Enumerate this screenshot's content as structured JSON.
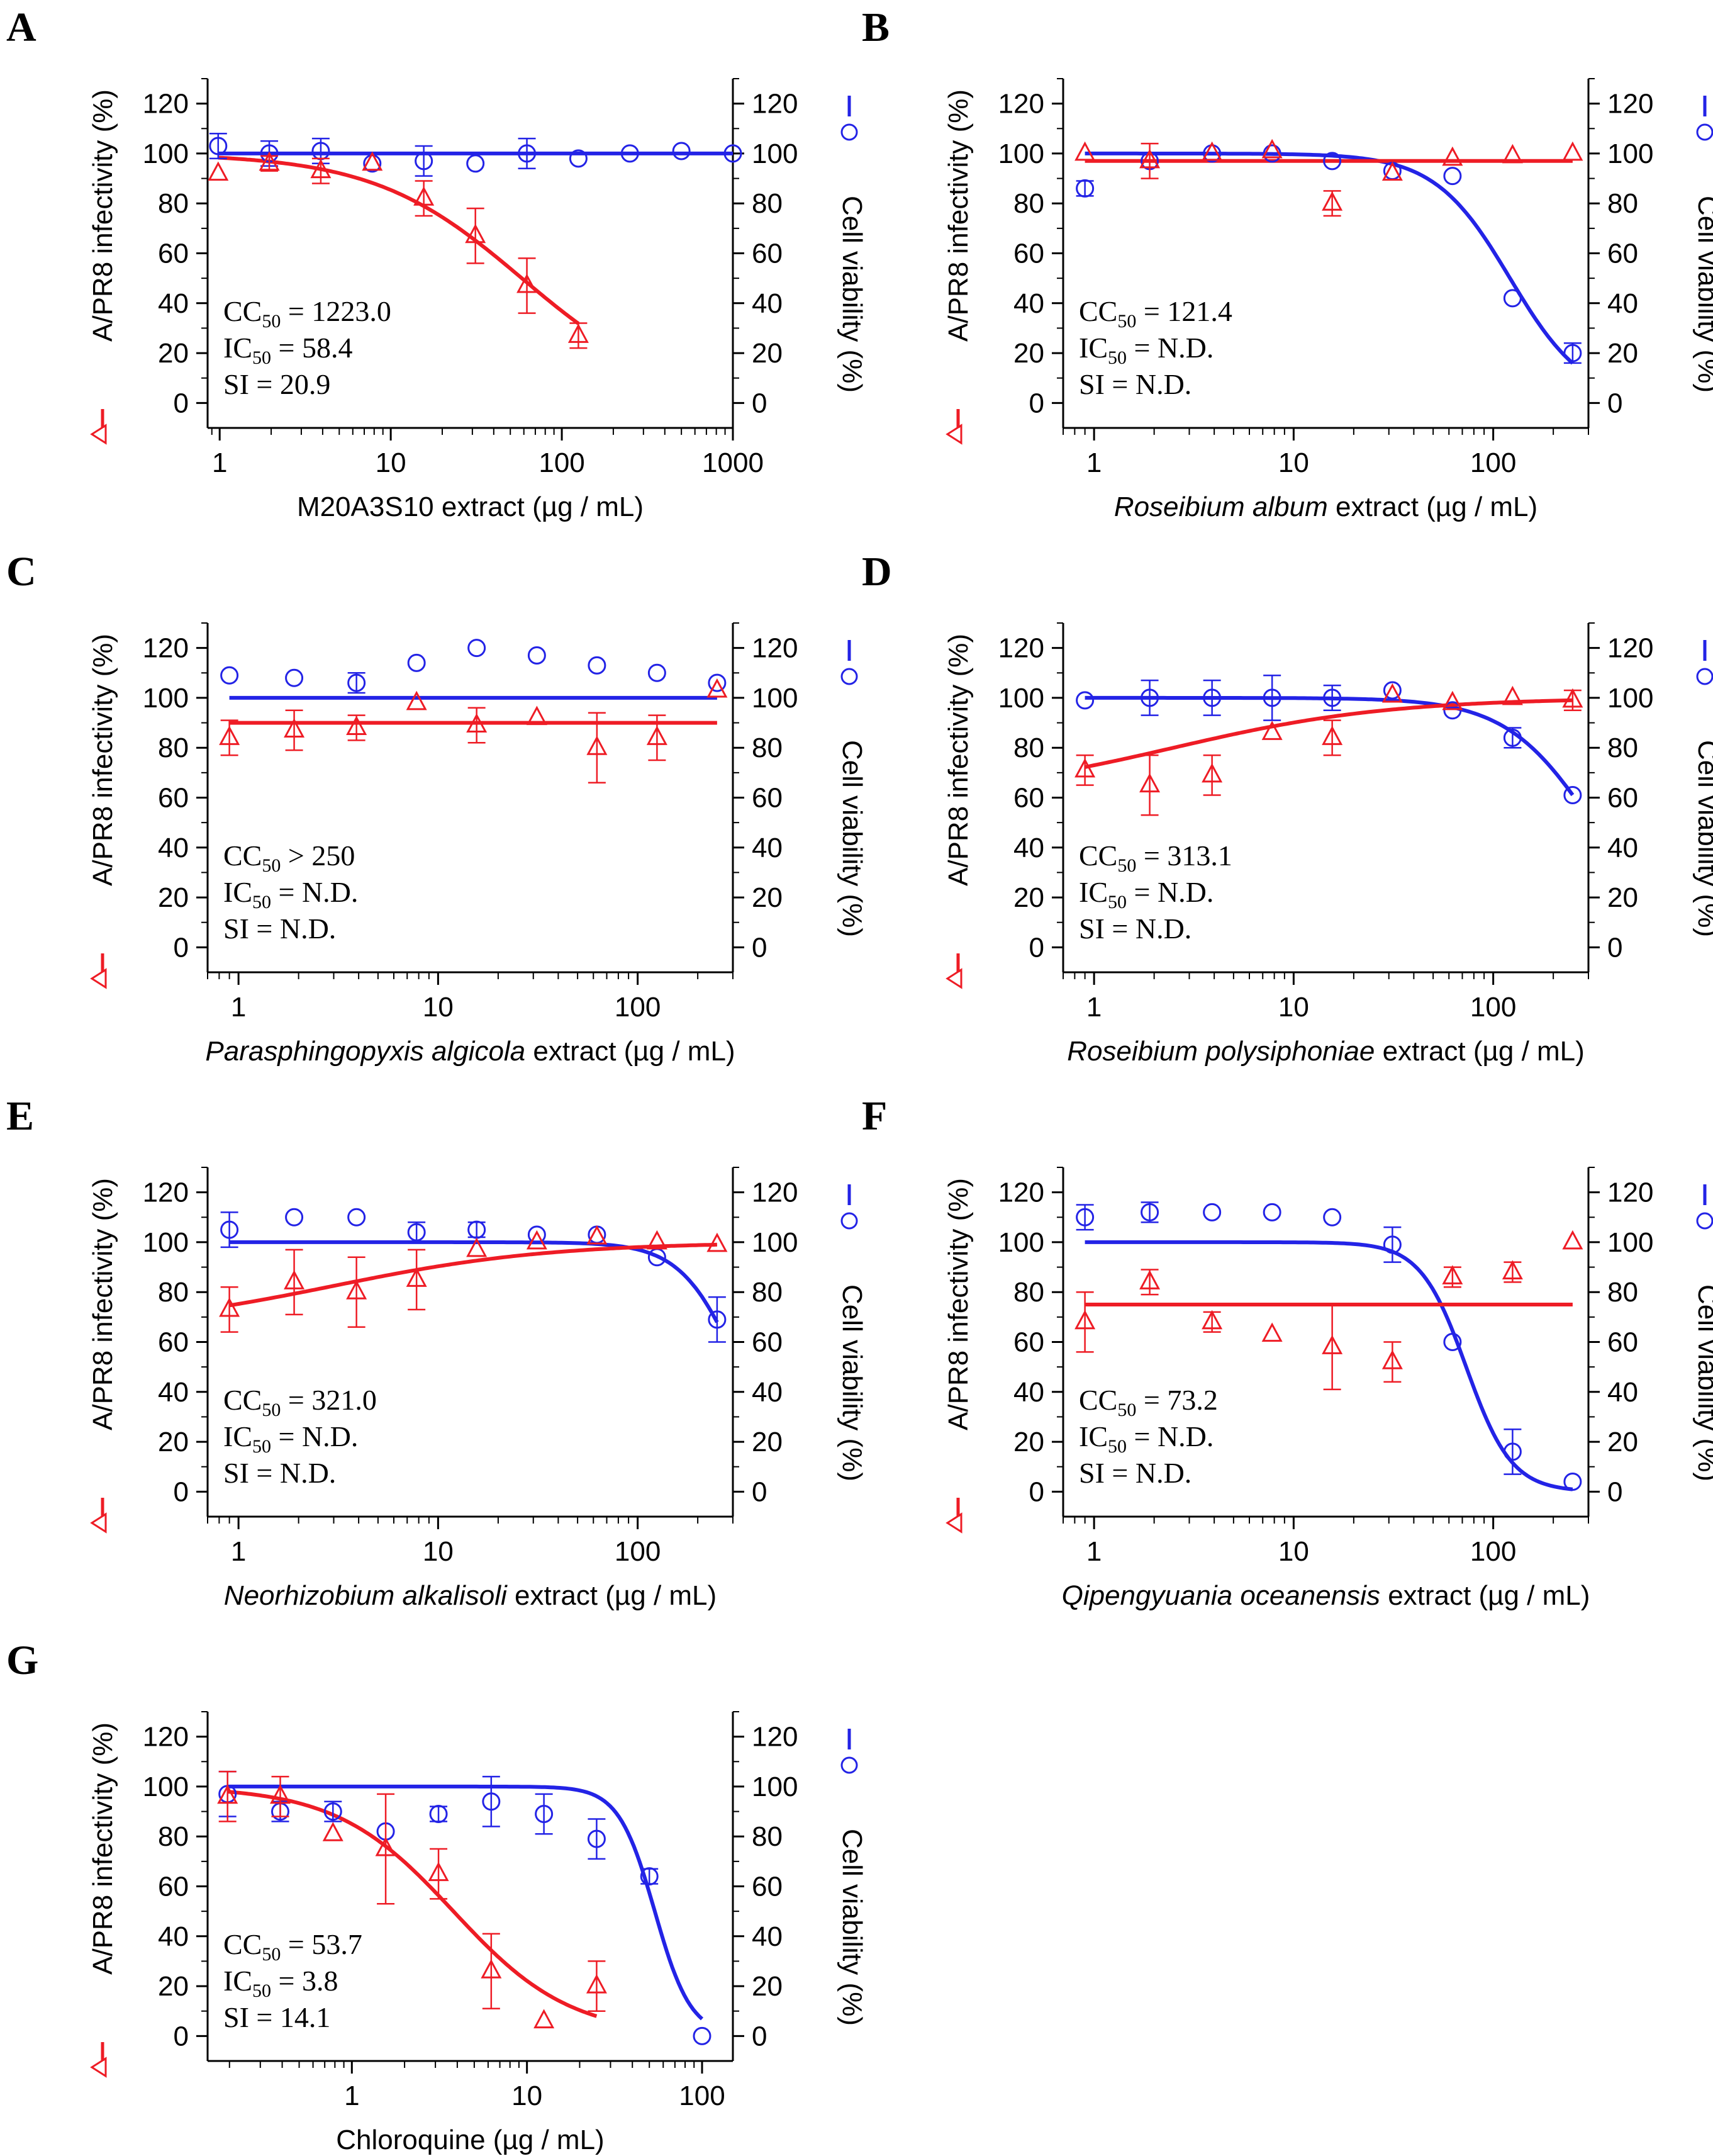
{
  "colors": {
    "infectivity": "#ee1c25",
    "viability": "#2323e6",
    "axis": "#000000"
  },
  "common": {
    "left_axis_title": "A/PR8 infectivity (%)",
    "right_axis_title": "Cell viability (%)",
    "y_ticks": [
      0,
      20,
      40,
      60,
      80,
      100,
      120
    ],
    "unit_suffix": " extract (µg / mL)"
  },
  "chart_data": [
    {
      "type": "scatter",
      "panel": "A",
      "xlabel_italic": "",
      "xlabel_plain": "M20A3S10 extract (µg / mL)",
      "xscale": "log",
      "xlim": [
        0.85,
        1000
      ],
      "x_ticks": [
        1,
        10,
        100,
        1000
      ],
      "ylim": [
        -10,
        130
      ],
      "stats": [
        {
          "pre": "CC",
          "sub": "50",
          "post": " = 1223.0"
        },
        {
          "pre": "IC",
          "sub": "50",
          "post": " = 58.4"
        },
        {
          "pre": "SI = 20.9",
          "sub": "",
          "post": ""
        }
      ],
      "series": [
        {
          "name": "Cell viability (%)",
          "marker": "circle",
          "color": "blue",
          "x": [
            0.98,
            1.95,
            3.9,
            7.8,
            15.6,
            31.25,
            62.5,
            125,
            250,
            500,
            1000
          ],
          "y": [
            103,
            100,
            101,
            96,
            97,
            96,
            100,
            98,
            100,
            101,
            100
          ],
          "err": [
            5,
            5,
            5,
            0,
            6,
            0,
            6,
            0,
            0,
            0,
            0
          ]
        },
        {
          "name": "A/PR8 infectivity (%)",
          "marker": "triangle",
          "color": "red",
          "x": [
            0.98,
            1.95,
            3.9,
            7.8,
            15.6,
            31.25,
            62.5,
            125
          ],
          "y": [
            92,
            96,
            93,
            96,
            82,
            67,
            47,
            27
          ],
          "err": [
            0,
            3,
            5,
            0,
            7,
            11,
            11,
            5
          ]
        }
      ],
      "fits": [
        {
          "color": "blue",
          "x_range": [
            0.98,
            1000
          ],
          "top": 100,
          "bottom": 100,
          "ec50": 1223.0,
          "hill": 1
        },
        {
          "color": "red",
          "x_range": [
            0.98,
            125
          ],
          "top": 100,
          "bottom": 0,
          "ec50": 58.4,
          "hill": 1
        }
      ]
    },
    {
      "type": "scatter",
      "panel": "B",
      "xlabel_italic": "Roseibium album",
      "xlabel_plain": " extract (µg / mL)",
      "xscale": "log",
      "xlim": [
        0.7,
        300
      ],
      "x_ticks": [
        1,
        10,
        100
      ],
      "ylim": [
        -10,
        130
      ],
      "stats": [
        {
          "pre": "CC",
          "sub": "50",
          "post": " = 121.4"
        },
        {
          "pre": "IC",
          "sub": "50",
          "post": " = N.D."
        },
        {
          "pre": "SI = N.D.",
          "sub": "",
          "post": ""
        }
      ],
      "series": [
        {
          "name": "Cell viability (%)",
          "marker": "circle",
          "color": "blue",
          "x": [
            0.9,
            1.9,
            3.9,
            7.8,
            15.6,
            31.25,
            62.5,
            125,
            250
          ],
          "y": [
            86,
            97,
            100,
            100,
            97,
            93,
            91,
            42,
            20
          ],
          "err": [
            3,
            0,
            0,
            0,
            0,
            0,
            0,
            0,
            4
          ]
        },
        {
          "name": "A/PR8 infectivity (%)",
          "marker": "triangle",
          "color": "red",
          "x": [
            0.9,
            1.9,
            3.9,
            7.8,
            15.6,
            31.25,
            62.5,
            125,
            250
          ],
          "y": [
            100,
            97,
            100,
            101,
            80,
            92,
            98,
            99,
            100
          ],
          "err": [
            0,
            7,
            0,
            0,
            5,
            0,
            0,
            0,
            0
          ]
        }
      ],
      "fits": [
        {
          "color": "blue",
          "x_range": [
            0.9,
            250
          ],
          "top": 100,
          "bottom": 0,
          "ec50": 121.4,
          "hill": 2.3
        },
        {
          "color": "red",
          "x_range": [
            0.9,
            250
          ],
          "top": 97,
          "bottom": 97,
          "ec50": 100,
          "hill": 1
        }
      ]
    },
    {
      "type": "scatter",
      "panel": "C",
      "xlabel_italic": "Parasphingopyxis algicola",
      "xlabel_plain": " extract (µg / mL)",
      "xscale": "log",
      "xlim": [
        0.7,
        300
      ],
      "x_ticks": [
        1,
        10,
        100
      ],
      "ylim": [
        -10,
        130
      ],
      "stats": [
        {
          "pre": "CC",
          "sub": "50",
          "post": " > 250"
        },
        {
          "pre": "IC",
          "sub": "50",
          "post": " = N.D."
        },
        {
          "pre": "SI = N.D.",
          "sub": "",
          "post": ""
        }
      ],
      "series": [
        {
          "name": "Cell viability (%)",
          "marker": "circle",
          "color": "blue",
          "x": [
            0.9,
            1.9,
            3.9,
            7.8,
            15.6,
            31.25,
            62.5,
            125,
            250
          ],
          "y": [
            109,
            108,
            106,
            114,
            120,
            117,
            113,
            110,
            106
          ],
          "err": [
            0,
            0,
            4,
            0,
            0,
            0,
            0,
            0,
            0
          ]
        },
        {
          "name": "A/PR8 infectivity (%)",
          "marker": "triangle",
          "color": "red",
          "x": [
            0.9,
            1.9,
            3.9,
            7.8,
            15.6,
            31.25,
            62.5,
            125,
            250
          ],
          "y": [
            84,
            87,
            88,
            98,
            89,
            92,
            80,
            84,
            103
          ],
          "err": [
            7,
            8,
            5,
            0,
            7,
            0,
            14,
            9,
            0
          ]
        }
      ],
      "fits": [
        {
          "color": "blue",
          "x_range": [
            0.9,
            250
          ],
          "top": 100,
          "bottom": 100,
          "ec50": 100,
          "hill": 1
        },
        {
          "color": "red",
          "x_range": [
            0.9,
            250
          ],
          "top": 90,
          "bottom": 90,
          "ec50": 100,
          "hill": 1
        }
      ]
    },
    {
      "type": "scatter",
      "panel": "D",
      "xlabel_italic": "Roseibium polysiphoniae",
      "xlabel_plain": " extract (µg / mL)",
      "xscale": "log",
      "xlim": [
        0.7,
        300
      ],
      "x_ticks": [
        1,
        10,
        100
      ],
      "ylim": [
        -10,
        130
      ],
      "stats": [
        {
          "pre": "CC",
          "sub": "50",
          "post": " = 313.1"
        },
        {
          "pre": "IC",
          "sub": "50",
          "post": " = N.D."
        },
        {
          "pre": "SI = N.D.",
          "sub": "",
          "post": ""
        }
      ],
      "series": [
        {
          "name": "Cell viability (%)",
          "marker": "circle",
          "color": "blue",
          "x": [
            0.9,
            1.9,
            3.9,
            7.8,
            15.6,
            31.25,
            62.5,
            125,
            250
          ],
          "y": [
            99,
            100,
            100,
            100,
            100,
            103,
            95,
            84,
            61
          ],
          "err": [
            0,
            7,
            7,
            9,
            5,
            0,
            0,
            4,
            0
          ]
        },
        {
          "name": "A/PR8 infectivity (%)",
          "marker": "triangle",
          "color": "red",
          "x": [
            0.9,
            1.9,
            3.9,
            7.8,
            15.6,
            31.25,
            62.5,
            125,
            250
          ],
          "y": [
            71,
            65,
            69,
            86,
            84,
            101,
            98,
            100,
            99
          ],
          "err": [
            6,
            12,
            8,
            0,
            7,
            0,
            0,
            0,
            4
          ]
        }
      ],
      "fits": [
        {
          "color": "blue",
          "x_range": [
            0.9,
            250
          ],
          "top": 100,
          "bottom": 0,
          "ec50": 313.1,
          "hill": 2
        },
        {
          "color": "red",
          "x_range": [
            0.9,
            250
          ],
          "top": 100,
          "bottom": 60,
          "ec50": 2.5,
          "hill": -0.8
        }
      ]
    },
    {
      "type": "scatter",
      "panel": "E",
      "xlabel_italic": "Neorhizobium alkalisoli",
      "xlabel_plain": " extract (µg / mL)",
      "xscale": "log",
      "xlim": [
        0.7,
        300
      ],
      "x_ticks": [
        1,
        10,
        100
      ],
      "ylim": [
        -10,
        130
      ],
      "stats": [
        {
          "pre": "CC",
          "sub": "50",
          "post": " = 321.0"
        },
        {
          "pre": "IC",
          "sub": "50",
          "post": " = N.D."
        },
        {
          "pre": "SI = N.D.",
          "sub": "",
          "post": ""
        }
      ],
      "series": [
        {
          "name": "Cell viability (%)",
          "marker": "circle",
          "color": "blue",
          "x": [
            0.9,
            1.9,
            3.9,
            7.8,
            15.6,
            31.25,
            62.5,
            125,
            250
          ],
          "y": [
            105,
            110,
            110,
            104,
            105,
            103,
            103,
            94,
            69
          ],
          "err": [
            7,
            0,
            0,
            4,
            3,
            0,
            0,
            0,
            9
          ]
        },
        {
          "name": "A/PR8 infectivity (%)",
          "marker": "triangle",
          "color": "red",
          "x": [
            0.9,
            1.9,
            3.9,
            7.8,
            15.6,
            31.25,
            62.5,
            125,
            250
          ],
          "y": [
            73,
            84,
            80,
            85,
            97,
            100,
            102,
            100,
            99
          ],
          "err": [
            9,
            13,
            14,
            12,
            0,
            0,
            0,
            0,
            0
          ]
        }
      ],
      "fits": [
        {
          "color": "blue",
          "x_range": [
            0.9,
            250
          ],
          "top": 100,
          "bottom": 0,
          "ec50": 321.0,
          "hill": 3
        },
        {
          "color": "red",
          "x_range": [
            0.9,
            250
          ],
          "top": 100,
          "bottom": 65,
          "ec50": 3,
          "hill": -0.8
        }
      ]
    },
    {
      "type": "scatter",
      "panel": "F",
      "xlabel_italic": "Qipengyuania oceanensis",
      "xlabel_plain": " extract (µg / mL)",
      "xscale": "log",
      "xlim": [
        0.7,
        300
      ],
      "x_ticks": [
        1,
        10,
        100
      ],
      "ylim": [
        -10,
        130
      ],
      "stats": [
        {
          "pre": "CC",
          "sub": "50",
          "post": " = 73.2"
        },
        {
          "pre": "IC",
          "sub": "50",
          "post": " = N.D."
        },
        {
          "pre": "SI = N.D.",
          "sub": "",
          "post": ""
        }
      ],
      "series": [
        {
          "name": "Cell viability (%)",
          "marker": "circle",
          "color": "blue",
          "x": [
            0.9,
            1.9,
            3.9,
            7.8,
            15.6,
            31.25,
            62.5,
            125,
            250
          ],
          "y": [
            110,
            112,
            112,
            112,
            110,
            99,
            60,
            16,
            4
          ],
          "err": [
            5,
            4,
            0,
            0,
            0,
            7,
            0,
            9,
            0
          ]
        },
        {
          "name": "A/PR8 infectivity (%)",
          "marker": "triangle",
          "color": "red",
          "x": [
            0.9,
            1.9,
            3.9,
            7.8,
            15.6,
            31.25,
            62.5,
            125,
            250
          ],
          "y": [
            68,
            84,
            68,
            63,
            58,
            52,
            86,
            88,
            100
          ],
          "err": [
            12,
            5,
            4,
            0,
            17,
            8,
            4,
            4,
            0
          ]
        }
      ],
      "fits": [
        {
          "color": "blue",
          "x_range": [
            0.9,
            250
          ],
          "top": 100,
          "bottom": 0,
          "ec50": 73.2,
          "hill": 3.8
        },
        {
          "color": "red",
          "x_range": [
            0.9,
            250
          ],
          "top": 75,
          "bottom": 75,
          "ec50": 100,
          "hill": 1
        }
      ]
    },
    {
      "type": "scatter",
      "panel": "G",
      "xlabel_italic": "",
      "xlabel_plain": "Chloroquine (µg / mL)",
      "xscale": "log",
      "xlim": [
        0.15,
        150
      ],
      "x_ticks": [
        1,
        10,
        100
      ],
      "ylim": [
        -10,
        130
      ],
      "stats": [
        {
          "pre": "CC",
          "sub": "50",
          "post": " = 53.7"
        },
        {
          "pre": "IC",
          "sub": "50",
          "post": " = 3.8"
        },
        {
          "pre": "SI = 14.1",
          "sub": "",
          "post": ""
        }
      ],
      "series": [
        {
          "name": "Cell viability (%)",
          "marker": "circle",
          "color": "blue",
          "x": [
            0.195,
            0.39,
            0.78,
            1.56,
            3.125,
            6.25,
            12.5,
            25,
            50,
            100
          ],
          "y": [
            97,
            90,
            90,
            82,
            89,
            94,
            89,
            79,
            64,
            0
          ],
          "err": [
            9,
            4,
            4,
            0,
            3,
            10,
            8,
            8,
            3,
            0
          ]
        },
        {
          "name": "A/PR8 infectivity (%)",
          "marker": "triangle",
          "color": "red",
          "x": [
            0.195,
            0.39,
            0.78,
            1.56,
            3.125,
            6.25,
            12.5,
            25
          ],
          "y": [
            96,
            96,
            81,
            75,
            65,
            26,
            6,
            20
          ],
          "err": [
            10,
            8,
            0,
            22,
            10,
            15,
            0,
            10
          ]
        }
      ],
      "fits": [
        {
          "color": "blue",
          "x_range": [
            0.195,
            100
          ],
          "top": 100,
          "bottom": 0,
          "ec50": 53.7,
          "hill": 4.2
        },
        {
          "color": "red",
          "x_range": [
            0.195,
            25
          ],
          "top": 100,
          "bottom": 0,
          "ec50": 3.8,
          "hill": 1.3
        }
      ]
    }
  ]
}
